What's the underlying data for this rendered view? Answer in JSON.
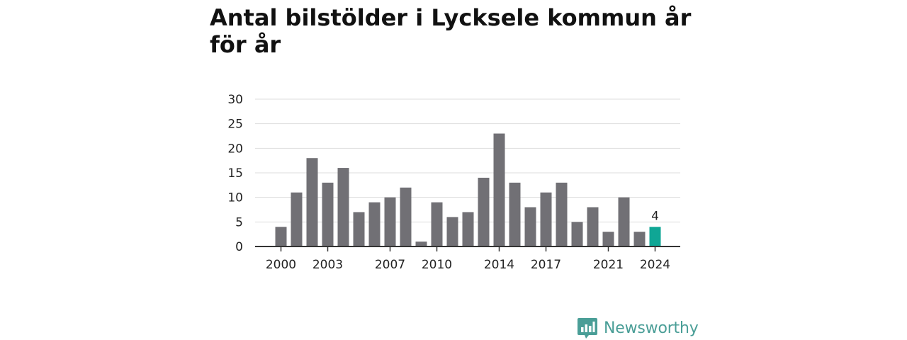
{
  "chart_data": {
    "type": "bar",
    "title": "Antal bilstölder i Lycksele kommun år för år",
    "xlabel": "",
    "ylabel": "",
    "categories": [
      "2000",
      "2001",
      "2002",
      "2003",
      "2004",
      "2005",
      "2006",
      "2007",
      "2008",
      "2009",
      "2010",
      "2011",
      "2012",
      "2013",
      "2014",
      "2015",
      "2016",
      "2017",
      "2018",
      "2019",
      "2020",
      "2021",
      "2022",
      "2023",
      "2024"
    ],
    "values": [
      4,
      11,
      18,
      13,
      16,
      7,
      9,
      10,
      12,
      1,
      9,
      6,
      7,
      14,
      23,
      13,
      8,
      11,
      13,
      5,
      8,
      3,
      10,
      3,
      4
    ],
    "x_tick_labels": [
      "2000",
      "2003",
      "2007",
      "2010",
      "2014",
      "2017",
      "2021",
      "2024"
    ],
    "y_ticks": [
      0,
      5,
      10,
      15,
      20,
      25,
      30
    ],
    "ylim": [
      0,
      30
    ],
    "grid": true,
    "legend": "none",
    "highlight_category": "2024",
    "highlight_label": "4",
    "colors": {
      "bar": "#717075",
      "highlight": "#0fa695",
      "grid": "#dddddd",
      "axis": "#333333"
    }
  },
  "branding": {
    "logo_text": "Newsworthy",
    "logo_icon": "newsworthy-bar-chart-logo-icon",
    "color": "#4a9e97"
  }
}
